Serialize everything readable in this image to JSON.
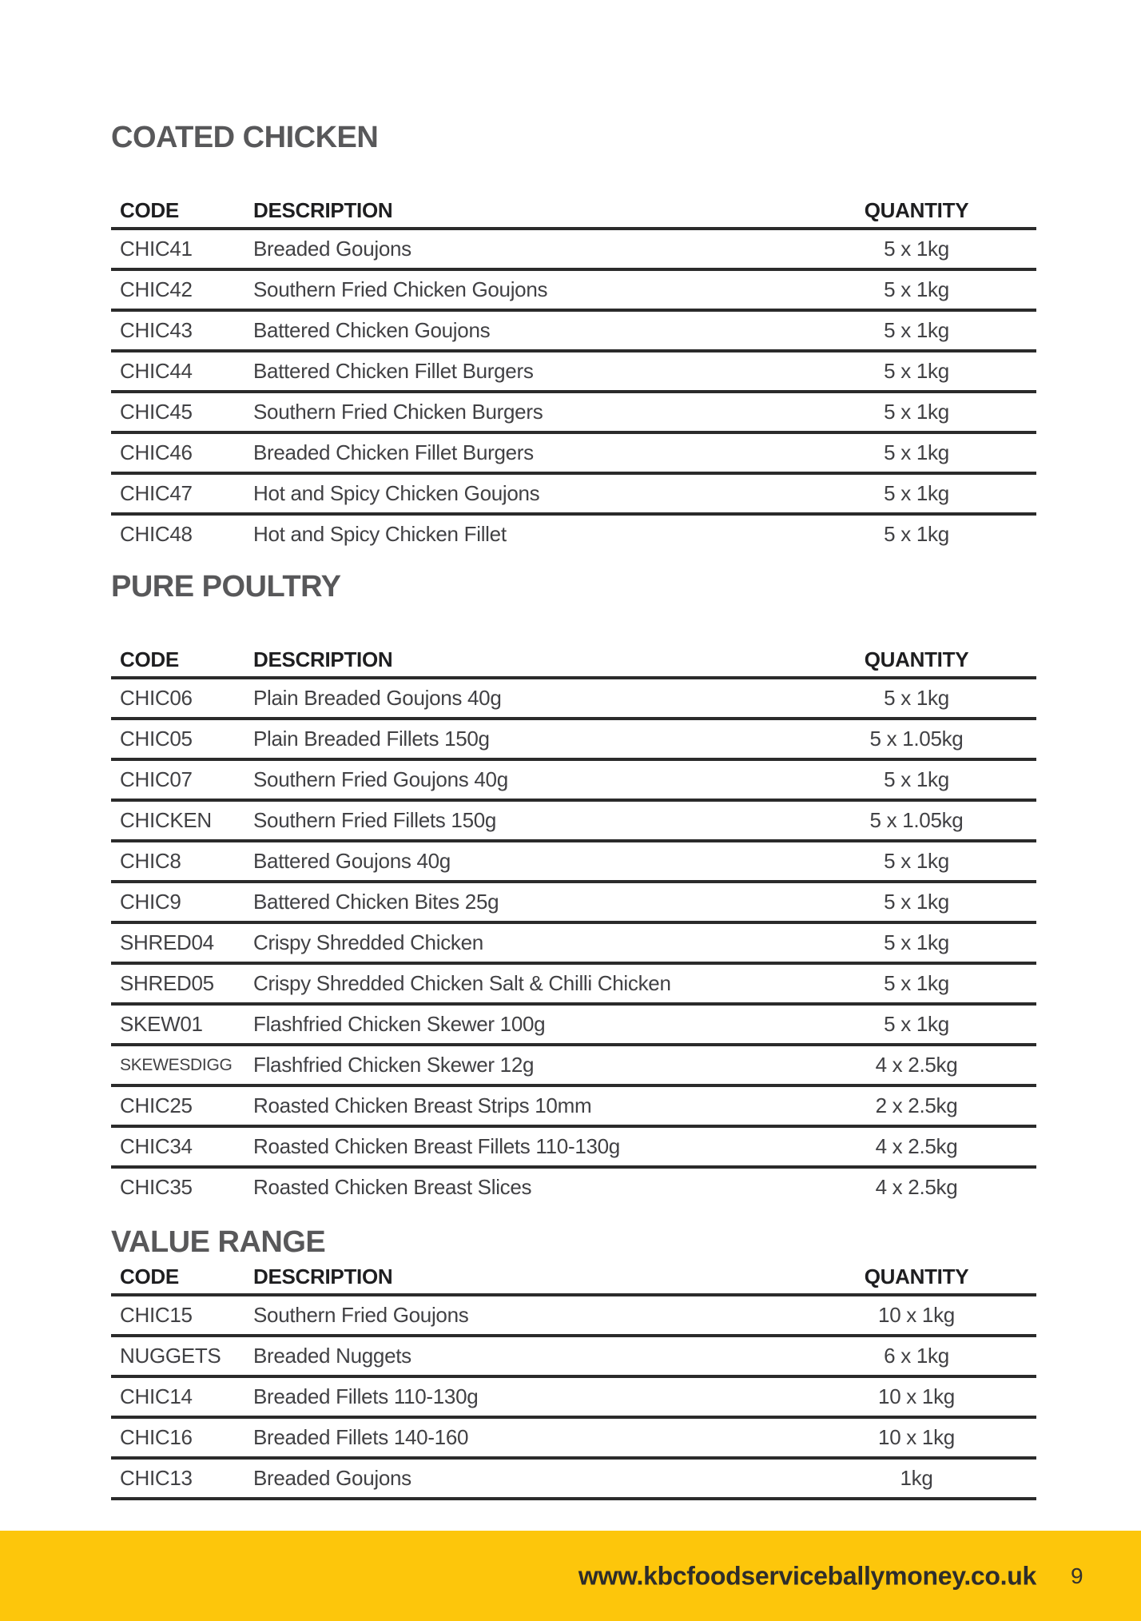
{
  "colors": {
    "section_title": "#58585A",
    "table_line": "#2B2B2B",
    "body_text": "#414144",
    "footer_band": "#FDC60B",
    "footer_text": "#2E2D2B"
  },
  "columns": {
    "code": "CODE",
    "description": "DESCRIPTION",
    "quantity": "QUANTITY"
  },
  "sections": [
    {
      "title": "COATED CHICKEN",
      "closing_rule": false,
      "rows": [
        {
          "code": "CHIC41",
          "description": "Breaded Goujons",
          "quantity": "5 x 1kg"
        },
        {
          "code": "CHIC42",
          "description": "Southern Fried Chicken Goujons",
          "quantity": "5 x 1kg"
        },
        {
          "code": "CHIC43",
          "description": "Battered Chicken Goujons",
          "quantity": "5 x 1kg"
        },
        {
          "code": "CHIC44",
          "description": "Battered Chicken Fillet Burgers",
          "quantity": "5 x 1kg"
        },
        {
          "code": "CHIC45",
          "description": "Southern Fried Chicken Burgers",
          "quantity": "5 x 1kg"
        },
        {
          "code": "CHIC46",
          "description": "Breaded Chicken Fillet Burgers",
          "quantity": "5 x 1kg"
        },
        {
          "code": "CHIC47",
          "description": "Hot and Spicy Chicken Goujons",
          "quantity": "5 x 1kg"
        },
        {
          "code": "CHIC48",
          "description": "Hot and Spicy Chicken Fillet",
          "quantity": "5 x 1kg"
        }
      ]
    },
    {
      "title": "PURE POULTRY",
      "closing_rule": false,
      "rows": [
        {
          "code": "CHIC06",
          "description": "Plain Breaded Goujons 40g",
          "quantity": "5 x 1kg"
        },
        {
          "code": "CHIC05",
          "description": "Plain Breaded Fillets 150g",
          "quantity": "5 x 1.05kg"
        },
        {
          "code": "CHIC07",
          "description": "Southern Fried Goujons 40g",
          "quantity": "5 x 1kg"
        },
        {
          "code": "CHICKEN",
          "description": "Southern Fried Fillets 150g",
          "quantity": "5 x 1.05kg"
        },
        {
          "code": "CHIC8",
          "description": "Battered Goujons 40g",
          "quantity": "5 x 1kg"
        },
        {
          "code": "CHIC9",
          "description": "Battered Chicken Bites 25g",
          "quantity": "5 x 1kg"
        },
        {
          "code": "SHRED04",
          "description": "Crispy Shredded Chicken",
          "quantity": "5 x 1kg"
        },
        {
          "code": "SHRED05",
          "description": "Crispy Shredded Chicken Salt & Chilli Chicken",
          "quantity": "5 x 1kg"
        },
        {
          "code": "SKEW01",
          "description": "Flashfried Chicken Skewer 100g",
          "quantity": "5 x 1kg"
        },
        {
          "code": "SKEWESDIGG",
          "code_small": true,
          "description": "Flashfried Chicken Skewer 12g",
          "quantity": "4 x 2.5kg"
        },
        {
          "code": "CHIC25",
          "description": "Roasted Chicken Breast Strips 10mm",
          "quantity": "2 x 2.5kg"
        },
        {
          "code": "CHIC34",
          "description": "Roasted Chicken Breast Fillets 110-130g",
          "quantity": "4 x 2.5kg"
        },
        {
          "code": "CHIC35",
          "description": "Roasted Chicken Breast Slices",
          "quantity": "4 x 2.5kg"
        }
      ]
    },
    {
      "title": "VALUE RANGE",
      "closing_rule": true,
      "rows": [
        {
          "code": "CHIC15",
          "description": "Southern Fried Goujons",
          "quantity": "10 x 1kg"
        },
        {
          "code": "NUGGETS",
          "description": "Breaded Nuggets",
          "quantity": "6 x 1kg"
        },
        {
          "code": "CHIC14",
          "description": "Breaded Fillets 110-130g",
          "quantity": "10 x 1kg"
        },
        {
          "code": "CHIC16",
          "description": "Breaded Fillets 140-160",
          "quantity": "10 x 1kg"
        },
        {
          "code": "CHIC13",
          "description": "Breaded Goujons",
          "quantity": "1kg"
        }
      ]
    }
  ],
  "footer": {
    "url": "www.kbcfoodserviceballymoney.co.uk",
    "page_number": "9"
  }
}
